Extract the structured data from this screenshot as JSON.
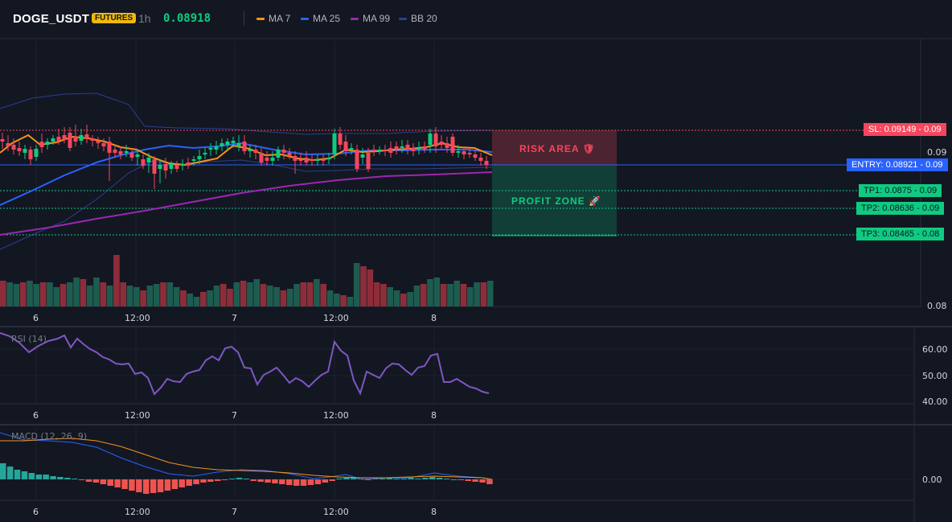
{
  "header": {
    "symbol": "DOGE_USDT",
    "badge": "FUTURES",
    "timeframe": "1h",
    "price": "0.08918"
  },
  "legend": [
    {
      "label": "MA 7",
      "color": "#f7931a"
    },
    {
      "label": "MA 25",
      "color": "#2962ff"
    },
    {
      "label": "MA 99",
      "color": "#9c27b0"
    },
    {
      "label": "BB 20",
      "color": "#2a3f8f"
    }
  ],
  "levels": {
    "sl": "SL: 0.09149 - 0.09",
    "entry": "ENTRY: 0.08921 - 0.09",
    "tp1": "TP1: 0.0875 - 0.09",
    "tp2": "TP2: 0.08636 - 0.09",
    "tp3": "TP3: 0.08465 - 0.08"
  },
  "zones": {
    "risk": "RISK AREA 🛡",
    "profit": "PROFIT ZONE 🚀"
  },
  "price_axis": {
    "top": "0.09",
    "bottom": "0.08"
  },
  "time_axis": [
    "6",
    "12:00",
    "7",
    "12:00",
    "8"
  ],
  "rsi": {
    "label": "RSI (14)",
    "ticks": [
      "60.00",
      "50.00",
      "40.00"
    ]
  },
  "macd": {
    "label": "MACD (12, 26, 9)",
    "tick": "0.00"
  },
  "colors": {
    "up": "#0ecb81",
    "down": "#f6465d",
    "ma7": "#f7931a",
    "ma25": "#2962ff",
    "ma99": "#9c27b0",
    "bb": "#2a3f8f",
    "rsi": "#7e57c2"
  }
}
